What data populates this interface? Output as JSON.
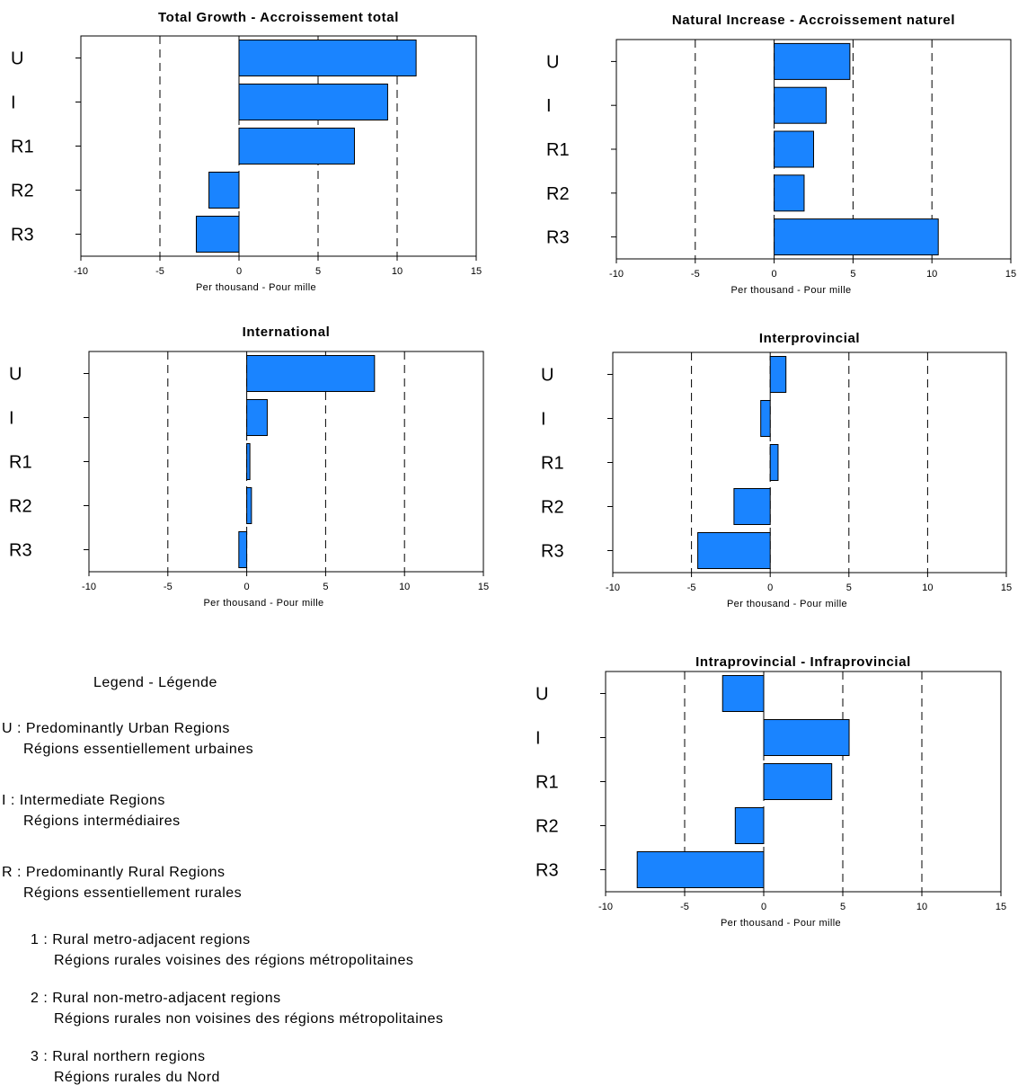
{
  "chart_data": [
    {
      "type": "bar",
      "orientation": "horizontal",
      "title": "Total Growth - Accroissement total",
      "xlabel": "Per thousand - Pour mille",
      "categories": [
        "U",
        "I",
        "R1",
        "R2",
        "R3"
      ],
      "values": [
        11.2,
        9.4,
        7.3,
        -1.9,
        -2.7
      ],
      "xlim": [
        -10,
        15
      ],
      "xticks": [
        "-10",
        "-5",
        "0",
        "5",
        "10",
        "15"
      ],
      "grid": "dashed-vertical",
      "bar_color": "#1a84ff"
    },
    {
      "type": "bar",
      "orientation": "horizontal",
      "title": "Natural Increase - Accroissement naturel",
      "xlabel": "Per thousand - Pour mille",
      "categories": [
        "U",
        "I",
        "R1",
        "R2",
        "R3"
      ],
      "values": [
        4.8,
        3.3,
        2.5,
        1.9,
        10.4
      ],
      "xlim": [
        -10,
        15
      ],
      "xticks": [
        "-10",
        "-5",
        "0",
        "5",
        "10",
        "15"
      ],
      "grid": "dashed-vertical",
      "bar_color": "#1a84ff"
    },
    {
      "type": "bar",
      "orientation": "horizontal",
      "title": "International",
      "xlabel": "Per thousand - Pour mille",
      "categories": [
        "U",
        "I",
        "R1",
        "R2",
        "R3"
      ],
      "values": [
        8.1,
        1.3,
        0.2,
        0.3,
        -0.5
      ],
      "xlim": [
        -10,
        15
      ],
      "xticks": [
        "-10",
        "-5",
        "0",
        "5",
        "10",
        "15"
      ],
      "grid": "dashed-vertical",
      "bar_color": "#1a84ff"
    },
    {
      "type": "bar",
      "orientation": "horizontal",
      "title": "Interprovincial",
      "xlabel": "Per thousand - Pour mille",
      "categories": [
        "U",
        "I",
        "R1",
        "R2",
        "R3"
      ],
      "values": [
        1.0,
        -0.6,
        0.5,
        -2.3,
        -4.6
      ],
      "xlim": [
        -10,
        15
      ],
      "xticks": [
        "-10",
        "-5",
        "0",
        "5",
        "10",
        "15"
      ],
      "grid": "dashed-vertical",
      "bar_color": "#1a84ff"
    },
    {
      "type": "bar",
      "orientation": "horizontal",
      "title": "Intraprovincial - Infraprovincial",
      "xlabel": "Per thousand - Pour mille",
      "categories": [
        "U",
        "I",
        "R1",
        "R2",
        "R3"
      ],
      "values": [
        -2.6,
        5.4,
        4.3,
        -1.8,
        -8.0
      ],
      "xlim": [
        -10,
        15
      ],
      "xticks": [
        "-10",
        "-5",
        "0",
        "5",
        "10",
        "15"
      ],
      "grid": "dashed-vertical",
      "bar_color": "#1a84ff"
    }
  ],
  "legend": {
    "heading": "Legend - Légende",
    "entries": [
      {
        "code": "U",
        "en": "Predominantly Urban Regions",
        "fr": "Régions essentiellement urbaines"
      },
      {
        "code": "I",
        "en": "Intermediate Regions",
        "fr": "Régions intermédiaires"
      },
      {
        "code": "R",
        "en": "Predominantly Rural Regions",
        "fr": "Régions essentiellement rurales"
      },
      {
        "code": "1",
        "en": "Rural metro-adjacent regions",
        "fr": "Régions rurales voisines des régions métropolitaines"
      },
      {
        "code": "2",
        "en": "Rural non-metro-adjacent regions",
        "fr": "Régions rurales non voisines des régions métropolitaines"
      },
      {
        "code": "3",
        "en": "Rural northern regions",
        "fr": "Régions rurales du Nord"
      }
    ]
  }
}
